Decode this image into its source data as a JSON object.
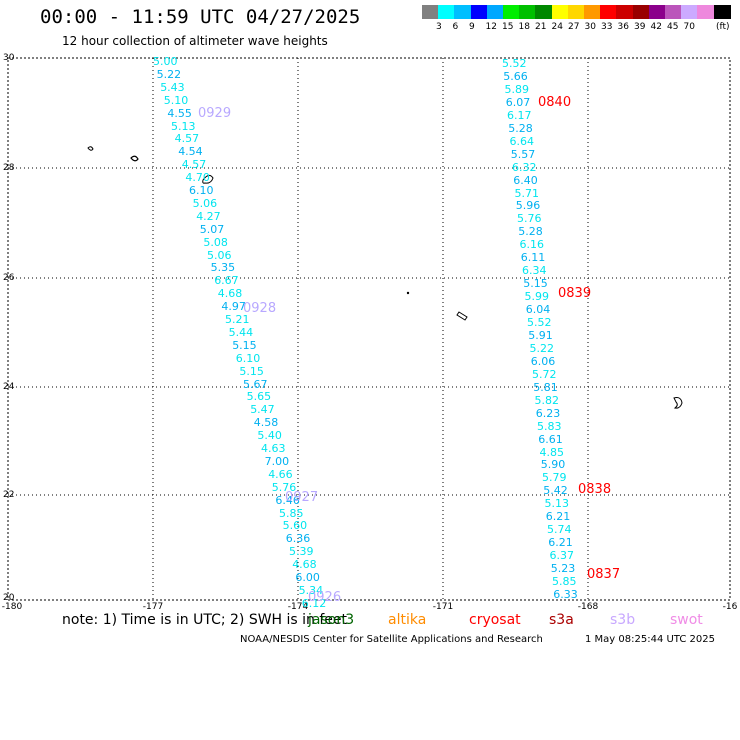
{
  "title": "00:00 - 11:59 UTC 04/27/2025",
  "subtitle": "12 hour collection of altimeter wave heights",
  "legend": {
    "colors": [
      "#808080",
      "#00ffff",
      "#00bfff",
      "#0000ff",
      "#00a8ff",
      "#00ee00",
      "#00c000",
      "#008800",
      "#ffff00",
      "#ffd700",
      "#ff9900",
      "#ff0000",
      "#cc0000",
      "#990000",
      "#8b008b",
      "#bb55bb",
      "#ccaaff",
      "#ee88dd",
      "#000000"
    ],
    "labels": [
      "3",
      "6",
      "9",
      "12",
      "15",
      "18",
      "21",
      "24",
      "27",
      "30",
      "33",
      "36",
      "39",
      "42",
      "45",
      "70",
      "(ft)"
    ]
  },
  "axes": {
    "x_ticks": [
      "-180",
      "-177",
      "-174",
      "-171",
      "-168",
      "-16"
    ],
    "y_ticks": [
      "30",
      "28",
      "26",
      "24",
      "22",
      "20"
    ]
  },
  "passes": [
    {
      "time": "0929",
      "values": [
        "5.00",
        "5.22",
        "5.43",
        "5.10",
        "4.55",
        "5.13",
        "4.57",
        "4.54",
        "4.57",
        "4.70",
        "6.10",
        "5.06",
        "4.27",
        "5.07",
        "5.08",
        "5.06",
        "5.35",
        "6.67",
        "4.68",
        "4.97",
        "5.21",
        "5.44",
        "5.15",
        "6.10",
        "5.15",
        "5.67",
        "5.65",
        "5.47",
        "4.58",
        "5.40",
        "4.63",
        "7.00",
        "4.66",
        "5.76",
        "6.46",
        "5.85",
        "5.60",
        "6.36",
        "5.39",
        "4.68",
        "6.00",
        "5.34",
        "6.12"
      ]
    },
    {
      "time": "0840",
      "values": [
        "5.52",
        "5.66",
        "5.89",
        "6.07",
        "6.17",
        "5.28",
        "6.64",
        "5.57",
        "6.32",
        "6.40",
        "5.71",
        "5.96",
        "5.76",
        "5.28",
        "6.16",
        "6.11",
        "6.34",
        "5.15",
        "5.99",
        "6.04",
        "5.52",
        "5.91",
        "5.22",
        "6.06",
        "5.72",
        "5.81",
        "5.82",
        "6.23",
        "5.83",
        "6.61",
        "4.85",
        "5.90",
        "5.79",
        "5.42",
        "5.13",
        "6.21",
        "5.74",
        "6.21",
        "6.37",
        "5.23",
        "5.85",
        "6.33"
      ]
    }
  ],
  "time_labels": [
    "0929",
    "0928",
    "0927",
    "0926",
    "0840",
    "0839",
    "0838",
    "0837"
  ],
  "note": {
    "prefix": "note: 1) Time is in UTC; 2) SWH is in feet",
    "sats": [
      {
        "name": "jason3",
        "color": "#006400"
      },
      {
        "name": "altika",
        "color": "#ff8c00"
      },
      {
        "name": "cryosat",
        "color": "#ff0000"
      },
      {
        "name": "s3a",
        "color": "#aa0000"
      },
      {
        "name": "s3b",
        "color": "#c8a8ff"
      },
      {
        "name": "swot",
        "color": "#f08ce6"
      }
    ]
  },
  "credit": "NOAA/NESDIS Center for Satellite Applications and Research",
  "stamp": "1 May 08:25:44 UTC 2025",
  "colors": {
    "swh_cyan": "#00e5ee",
    "swh_blue": "#00b0f0",
    "time_lavender": "#b8a8ff",
    "time_red": "#ff0000"
  }
}
